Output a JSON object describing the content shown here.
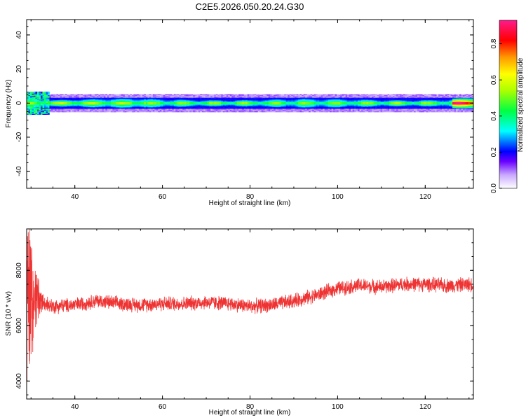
{
  "title": "C2E5.2026.050.20.24.G30",
  "chart_data": [
    {
      "type": "heatmap",
      "xlabel": "Height of straight line (km)",
      "ylabel": "Frequency (Hz)",
      "xlim": [
        29,
        131
      ],
      "ylim": [
        -50,
        49
      ],
      "xticks": [
        40,
        60,
        80,
        100,
        120
      ],
      "yticks": [
        -40,
        -20,
        0,
        20,
        40
      ],
      "colorbar": {
        "label": "Normalized spectral amplitude",
        "range": [
          0,
          0.93
        ],
        "ticks": [
          0.0,
          0.2,
          0.4,
          0.6,
          0.8
        ]
      },
      "signal": {
        "center_frequency_hz": 0,
        "peak_amplitude_near_80km": 0.45,
        "main_band_halfwidth_hz": 2.5,
        "segments": [
          {
            "x": [
              33,
              56
            ],
            "peak_amplitude": 0.5
          },
          {
            "x": [
              56,
              92
            ],
            "peak_amplitude": 0.45
          },
          {
            "x": [
              92,
              126
            ],
            "peak_amplitude": 0.45
          },
          {
            "x": [
              126,
              131
            ],
            "peak_amplitude": 0.85
          }
        ],
        "noisy_start_x": [
          29,
          34
        ]
      }
    },
    {
      "type": "line",
      "xlabel": "Height of straight line (km)",
      "ylabel": "SNR (10 * v/v)",
      "xlim": [
        29,
        131
      ],
      "ylim": [
        3350,
        9500
      ],
      "xticks": [
        40,
        60,
        80,
        100,
        120
      ],
      "yticks": [
        4000,
        6000,
        8000
      ],
      "color": "#ee3333",
      "trend": {
        "x": [
          29,
          31,
          33,
          35,
          40,
          45,
          50,
          55,
          60,
          65,
          70,
          75,
          80,
          85,
          90,
          95,
          100,
          105,
          110,
          115,
          120,
          125,
          131
        ],
        "y": [
          7000,
          6900,
          6800,
          6700,
          6750,
          6900,
          6800,
          6750,
          6800,
          6800,
          6850,
          6800,
          6700,
          6750,
          6900,
          7100,
          7350,
          7450,
          7400,
          7500,
          7500,
          7450,
          7500
        ]
      },
      "noise_amplitude": 220,
      "initial_oscillation": {
        "x": [
          29,
          34
        ],
        "amplitude": 3500
      }
    }
  ]
}
